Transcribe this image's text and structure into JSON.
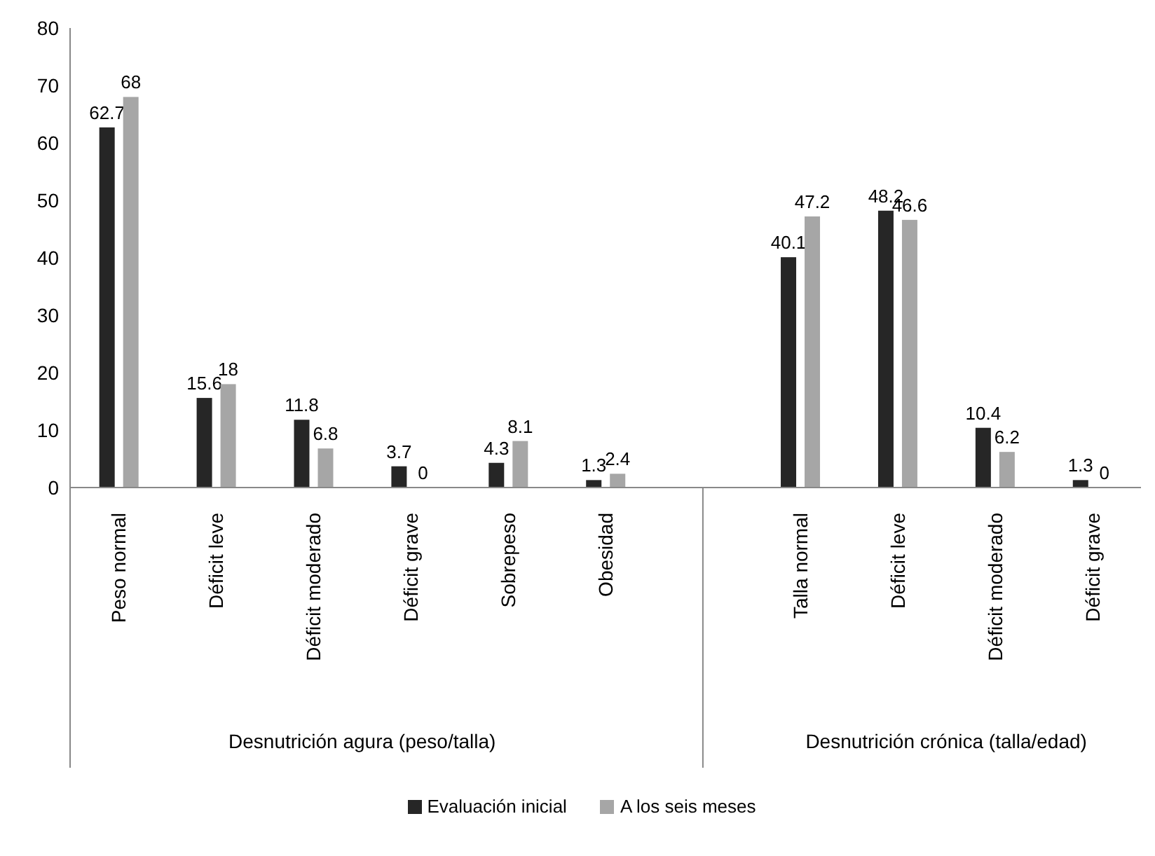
{
  "chart_data": {
    "type": "bar",
    "categories": [
      "Peso normal",
      "Déficit leve",
      "Déficit moderado",
      "Déficit grave",
      "Sobrepeso",
      "Obesidad",
      null,
      "Talla normal",
      "Déficit leve",
      "Déficit moderado",
      "Déficit grave"
    ],
    "series": [
      {
        "name": "Evaluación inicial",
        "color": "#262626",
        "values": [
          62.7,
          15.6,
          11.8,
          3.7,
          4.3,
          1.3,
          null,
          40.1,
          48.2,
          10.4,
          1.3
        ]
      },
      {
        "name": "A los seis meses",
        "color": "#a6a6a6",
        "values": [
          68,
          18,
          6.8,
          0,
          8.1,
          2.4,
          null,
          47.2,
          46.6,
          6.2,
          0
        ]
      }
    ],
    "ylim": [
      0,
      80
    ],
    "yticks": [
      0,
      10,
      20,
      30,
      40,
      50,
      60,
      70,
      80
    ],
    "annotations": [
      "Desnutrición agura (peso/talla)",
      "Desnutrición crónica (talla/edad)"
    ],
    "data_labels": true,
    "grid": false,
    "legend": "bottom"
  }
}
